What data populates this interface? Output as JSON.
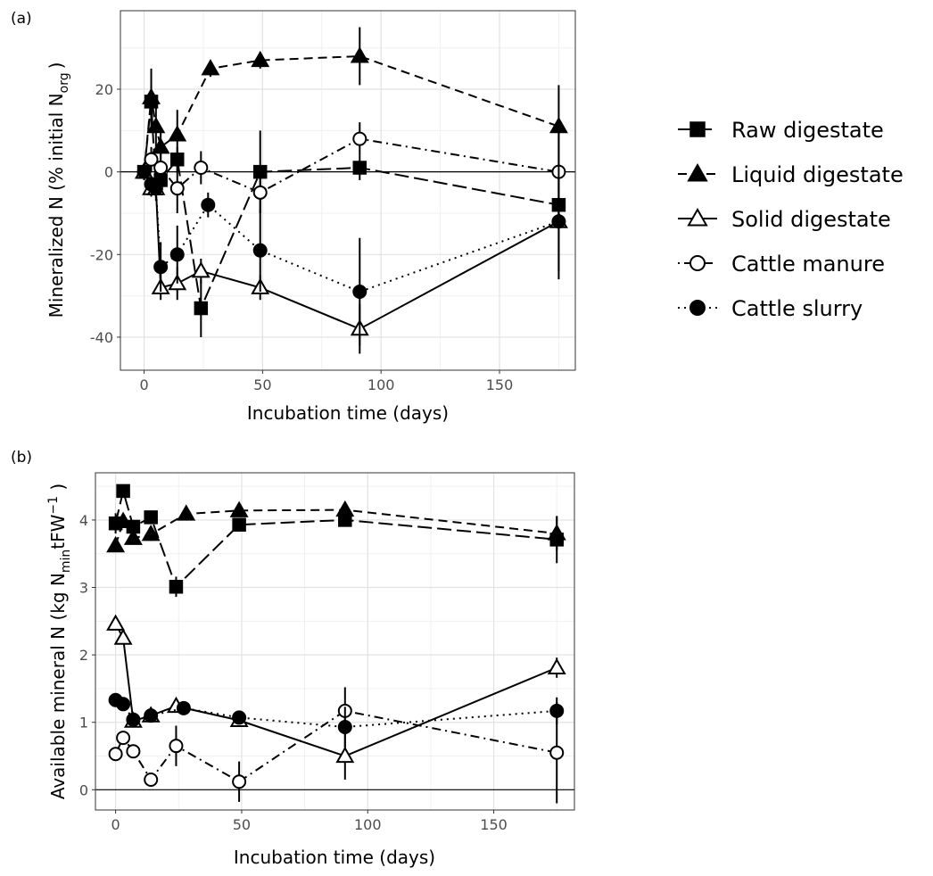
{
  "legend": [
    {
      "name": "Raw digestate",
      "marker": "square-filled",
      "line": "longdash"
    },
    {
      "name": "Liquid digestate",
      "marker": "triangle-filled",
      "line": "dashed"
    },
    {
      "name": "Solid digestate",
      "marker": "triangle-open",
      "line": "solid"
    },
    {
      "name": "Cattle manure",
      "marker": "circle-open",
      "line": "dotdash"
    },
    {
      "name": "Cattle slurry",
      "marker": "circle-filled",
      "line": "dotted"
    }
  ],
  "chart_data": [
    {
      "type": "line",
      "panel_label": "(a)",
      "xlabel": "Incubation time (days)",
      "ylabel_main": "Mineralized N (% initial  N",
      "ylabel_sub": "org",
      "ylabel_end": ")",
      "xlim": [
        -10,
        182
      ],
      "ylim": [
        -48,
        39
      ],
      "xticks": [
        0,
        50,
        100,
        150
      ],
      "xtick_labels": [
        "0",
        "50",
        "100",
        "150"
      ],
      "yticks": [
        -40,
        -20,
        0,
        20
      ],
      "ytick_labels": [
        "-40",
        "-20",
        "0",
        "20"
      ],
      "grid": true,
      "hline": 0,
      "series": [
        {
          "name": "Raw digestate",
          "x": [
            0,
            3,
            5,
            7,
            14,
            24,
            49,
            91,
            175
          ],
          "y": [
            0,
            17,
            -4,
            -2,
            3,
            -33,
            0,
            1,
            -8
          ],
          "err": [
            2,
            4,
            3,
            3,
            3,
            7,
            10,
            3,
            2
          ]
        },
        {
          "name": "Liquid digestate",
          "x": [
            0,
            3,
            5,
            7,
            14,
            28,
            49,
            91,
            175
          ],
          "y": [
            0,
            18,
            11,
            6,
            9,
            25,
            27,
            28,
            11
          ],
          "err": [
            2,
            7,
            5,
            4,
            6,
            2,
            2,
            7,
            10
          ]
        },
        {
          "name": "Solid digestate",
          "x": [
            0,
            3,
            5,
            7,
            14,
            24,
            49,
            91,
            175
          ],
          "y": [
            0,
            -4,
            -4,
            -28,
            -27,
            -24,
            -28,
            -38,
            -12
          ],
          "err": [
            1,
            2,
            2,
            3,
            4,
            3,
            3,
            6,
            12
          ]
        },
        {
          "name": "Cattle manure",
          "x": [
            3,
            7,
            14,
            24,
            49,
            91,
            175
          ],
          "y": [
            3,
            1,
            -4,
            1,
            -5,
            8,
            0
          ],
          "err": [
            3,
            6,
            6,
            4,
            5,
            4,
            11
          ]
        },
        {
          "name": "Cattle slurry",
          "x": [
            0,
            3,
            5,
            7,
            14,
            27,
            49,
            91,
            175
          ],
          "y": [
            0,
            -3,
            -4,
            -23,
            -20,
            -8,
            -19,
            -29,
            -12
          ],
          "err": [
            1,
            2,
            2,
            6,
            7,
            3,
            10,
            13,
            14
          ]
        }
      ]
    },
    {
      "type": "line",
      "panel_label": "(b)",
      "xlabel": "Incubation time (days)",
      "ylabel_main": "Available mineral N (kg N",
      "ylabel_sub": "min",
      "ylabel_end": "tFW",
      "ylabel_sup": "−1",
      "ylabel_close": " )",
      "xlim": [
        -8,
        182
      ],
      "ylim": [
        -0.3,
        4.7
      ],
      "xticks": [
        0,
        50,
        100,
        150
      ],
      "xtick_labels": [
        "0",
        "50",
        "100",
        "150"
      ],
      "yticks": [
        0,
        1,
        2,
        3,
        4
      ],
      "ytick_labels": [
        "0",
        "1",
        "2",
        "3",
        "4"
      ],
      "grid": true,
      "hline": 0,
      "series": [
        {
          "name": "Raw digestate",
          "x": [
            0,
            3,
            7,
            14,
            24,
            49,
            91,
            175
          ],
          "y": [
            3.95,
            4.43,
            3.9,
            4.04,
            3.01,
            3.93,
            4.0,
            3.71
          ],
          "err": [
            0.15,
            0.05,
            0.1,
            0.1,
            0.15,
            0.1,
            0.1,
            0.35
          ]
        },
        {
          "name": "Liquid digestate",
          "x": [
            0,
            3,
            7,
            14,
            28,
            49,
            91,
            175
          ],
          "y": [
            3.62,
            3.98,
            3.73,
            3.79,
            4.09,
            4.14,
            4.15,
            3.8
          ],
          "err": [
            0.05,
            0.05,
            0.05,
            0.1,
            0.05,
            0.05,
            0.05,
            0.25
          ]
        },
        {
          "name": "Solid digestate",
          "x": [
            0,
            3,
            7,
            14,
            24,
            49,
            91,
            175
          ],
          "y": [
            2.46,
            2.25,
            1.02,
            1.1,
            1.24,
            1.03,
            0.5,
            1.81
          ],
          "err": [
            0.05,
            0.05,
            0.05,
            0.05,
            0.05,
            0.1,
            0.35,
            0.15
          ]
        },
        {
          "name": "Cattle manure",
          "x": [
            0,
            3,
            7,
            14,
            24,
            49,
            91,
            175
          ],
          "y": [
            0.53,
            0.77,
            0.57,
            0.15,
            0.65,
            0.12,
            1.17,
            0.55
          ],
          "err": [
            0.05,
            0.05,
            0.05,
            0.05,
            0.3,
            0.3,
            0.35,
            0.75
          ]
        },
        {
          "name": "Cattle slurry",
          "x": [
            0,
            3,
            7,
            14,
            27,
            49,
            91,
            175
          ],
          "y": [
            1.33,
            1.27,
            1.04,
            1.1,
            1.21,
            1.07,
            0.93,
            1.17
          ],
          "err": [
            0.03,
            0.03,
            0.05,
            0.05,
            0.05,
            0.05,
            0.3,
            0.2
          ]
        }
      ]
    }
  ]
}
